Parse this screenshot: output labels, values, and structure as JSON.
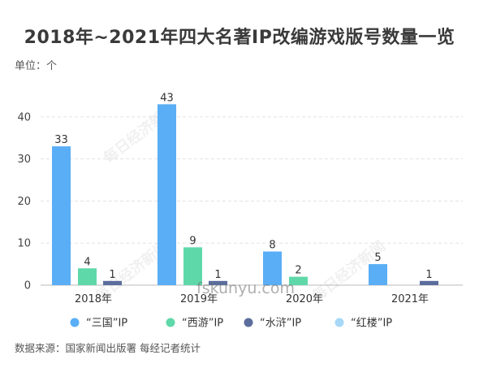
{
  "title": "2018年~2021年四大名著IP改编游戏版号数量一览",
  "unit": "单位：个",
  "source": "数据来源：国家新闻出版署 每经记者统计",
  "watermarks": [
    "每日经济新闻",
    "每日经济新闻",
    "每日经济新闻"
  ],
  "site_watermark": "fskunyu.com",
  "chart_data": {
    "type": "bar",
    "categories": [
      "2018年",
      "2019年",
      "2020年",
      "2021年"
    ],
    "series": [
      {
        "name": "“三国”IP",
        "color": "#5aaef5",
        "values": [
          33,
          43,
          8,
          5
        ]
      },
      {
        "name": "“西游”IP",
        "color": "#5fd8a9",
        "values": [
          4,
          9,
          2,
          null
        ]
      },
      {
        "name": "“水浒”IP",
        "color": "#5b6d9c",
        "values": [
          1,
          1,
          null,
          1
        ]
      },
      {
        "name": "“红楼”IP",
        "color": "#a7d8f7",
        "values": [
          null,
          null,
          null,
          null
        ]
      }
    ],
    "yticks": [
      0,
      10,
      20,
      30,
      40
    ],
    "ylim": [
      0,
      45
    ],
    "grid": true,
    "legend_position": "bottom"
  }
}
